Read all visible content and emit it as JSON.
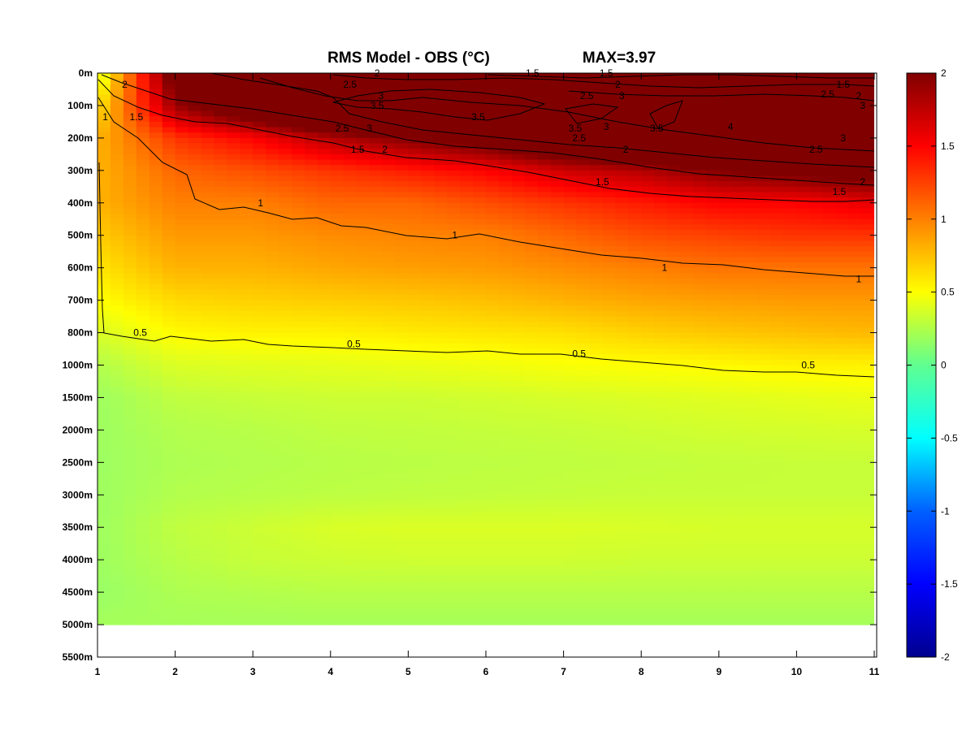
{
  "chart_data": {
    "type": "heatmap",
    "title": "RMS Model - OBS (°C)",
    "max_annotation": "MAX=3.97",
    "x": {
      "ticks": [
        1,
        2,
        3,
        4,
        5,
        6,
        7,
        8,
        9,
        10,
        11
      ],
      "tick_labels": [
        "1",
        "2",
        "3",
        "4",
        "5",
        "6",
        "7",
        "8",
        "9",
        "10",
        "11"
      ],
      "range": [
        1,
        11
      ]
    },
    "y": {
      "tick_labels": [
        "0m",
        "100m",
        "200m",
        "300m",
        "400m",
        "500m",
        "600m",
        "700m",
        "800m",
        "1000m",
        "1500m",
        "2000m",
        "2500m",
        "3000m",
        "3500m",
        "4000m",
        "4500m",
        "5000m",
        "5500m"
      ],
      "data_extent_label": "5000m"
    },
    "colorbar": {
      "range": [
        -2,
        2
      ],
      "tick_labels": [
        "2",
        "1.5",
        "1",
        "0.5",
        "0",
        "-0.5",
        "-1",
        "-1.5",
        "-2"
      ],
      "colormap": "jet",
      "colors": [
        "#00008f",
        "#0000ff",
        "#0080ff",
        "#00ffff",
        "#80ff80",
        "#ffff00",
        "#ff8000",
        "#ff0000",
        "#800000"
      ]
    },
    "depth_profiles": [
      {
        "depth": "0m",
        "values": [
          0.3,
          2.2,
          3.2,
          3.6,
          3.8,
          3.9,
          3.9,
          3.7,
          3.5,
          3.3,
          3.0
        ]
      },
      {
        "depth": "100m",
        "values": [
          0.6,
          1.9,
          2.4,
          3.0,
          3.5,
          3.6,
          3.8,
          3.6,
          3.4,
          3.3,
          3.2
        ]
      },
      {
        "depth": "200m",
        "values": [
          0.8,
          1.3,
          1.5,
          1.8,
          2.0,
          2.2,
          2.5,
          2.8,
          3.1,
          3.2,
          3.2
        ]
      },
      {
        "depth": "300m",
        "values": [
          0.8,
          1.1,
          1.2,
          1.3,
          1.4,
          1.5,
          1.7,
          1.8,
          2.0,
          2.1,
          2.2
        ]
      },
      {
        "depth": "400m",
        "values": [
          0.8,
          1.0,
          1.0,
          1.1,
          1.1,
          1.2,
          1.3,
          1.4,
          1.5,
          1.5,
          1.6
        ]
      },
      {
        "depth": "500m",
        "values": [
          0.7,
          0.9,
          0.9,
          0.95,
          0.98,
          1.0,
          1.1,
          1.2,
          1.25,
          1.3,
          1.3
        ]
      },
      {
        "depth": "600m",
        "values": [
          0.6,
          0.8,
          0.8,
          0.85,
          0.88,
          0.9,
          0.95,
          1.0,
          1.05,
          1.05,
          1.05
        ]
      },
      {
        "depth": "700m",
        "values": [
          0.5,
          0.65,
          0.68,
          0.7,
          0.72,
          0.75,
          0.8,
          0.85,
          0.88,
          0.9,
          0.9
        ]
      },
      {
        "depth": "800m",
        "values": [
          0.35,
          0.52,
          0.55,
          0.55,
          0.58,
          0.6,
          0.62,
          0.68,
          0.72,
          0.75,
          0.78
        ]
      },
      {
        "depth": "1000m",
        "values": [
          0.2,
          0.36,
          0.38,
          0.4,
          0.42,
          0.44,
          0.48,
          0.5,
          0.52,
          0.55,
          0.55
        ]
      },
      {
        "depth": "1500m",
        "values": [
          0.12,
          0.25,
          0.28,
          0.3,
          0.3,
          0.32,
          0.34,
          0.36,
          0.38,
          0.4,
          0.42
        ]
      },
      {
        "depth": "2000m",
        "values": [
          0.12,
          0.2,
          0.22,
          0.25,
          0.26,
          0.27,
          0.28,
          0.3,
          0.32,
          0.33,
          0.34
        ]
      },
      {
        "depth": "2500m",
        "values": [
          0.12,
          0.18,
          0.2,
          0.22,
          0.23,
          0.24,
          0.25,
          0.26,
          0.27,
          0.28,
          0.28
        ]
      },
      {
        "depth": "3000m",
        "values": [
          0.12,
          0.2,
          0.22,
          0.24,
          0.25,
          0.26,
          0.27,
          0.28,
          0.28,
          0.28,
          0.28
        ]
      },
      {
        "depth": "3500m",
        "values": [
          0.12,
          0.25,
          0.3,
          0.35,
          0.36,
          0.36,
          0.36,
          0.35,
          0.34,
          0.34,
          0.34
        ]
      },
      {
        "depth": "4000m",
        "values": [
          0.12,
          0.22,
          0.28,
          0.3,
          0.31,
          0.31,
          0.31,
          0.3,
          0.3,
          0.3,
          0.3
        ]
      },
      {
        "depth": "4500m",
        "values": [
          0.1,
          0.18,
          0.2,
          0.22,
          0.22,
          0.22,
          0.22,
          0.22,
          0.22,
          0.22,
          0.22
        ]
      },
      {
        "depth": "5000m",
        "values": [
          0.15,
          0.15,
          0.15,
          0.15,
          0.15,
          0.15,
          0.15,
          0.15,
          0.15,
          0.15,
          0.15
        ]
      }
    ],
    "contour_labels": [
      {
        "text": "2",
        "x": 1.35,
        "depth": "0m+"
      },
      {
        "text": "1",
        "x": 1.1,
        "depth": "100m+"
      },
      {
        "text": "1.5",
        "x": 1.5,
        "depth": "100m+"
      },
      {
        "text": "1",
        "x": 3.1,
        "depth": "400m"
      },
      {
        "text": "1",
        "x": 5.6,
        "depth": "500m"
      },
      {
        "text": "1",
        "x": 8.3,
        "depth": "600m"
      },
      {
        "text": "1",
        "x": 10.8,
        "depth": "600m+"
      },
      {
        "text": "0.5",
        "x": 1.55,
        "depth": "800m"
      },
      {
        "text": "0.5",
        "x": 4.3,
        "depth": "800m+"
      },
      {
        "text": "0.5",
        "x": 7.2,
        "depth": "1000m-"
      },
      {
        "text": "0.5",
        "x": 10.15,
        "depth": "1000m"
      },
      {
        "text": "1.5",
        "x": 4.35,
        "depth": "200m+"
      },
      {
        "text": "2",
        "x": 4.7,
        "depth": "200m+"
      },
      {
        "text": "2.5",
        "x": 4.15,
        "depth": "100m++"
      },
      {
        "text": "3",
        "x": 4.5,
        "depth": "100m++"
      },
      {
        "text": "3.5",
        "x": 4.6,
        "depth": "100m"
      },
      {
        "text": "2.5",
        "x": 4.25,
        "depth": "0m+"
      },
      {
        "text": "3",
        "x": 4.65,
        "depth": "0m++"
      },
      {
        "text": "2",
        "x": 4.6,
        "depth": "0m"
      },
      {
        "text": "3.5",
        "x": 5.9,
        "depth": "100m+"
      },
      {
        "text": "1.5",
        "x": 6.6,
        "depth": "0m"
      },
      {
        "text": "2.5",
        "x": 7.3,
        "depth": "0m++"
      },
      {
        "text": "3.5",
        "x": 7.15,
        "depth": "100m++"
      },
      {
        "text": "2.5",
        "x": 7.2,
        "depth": "200m"
      },
      {
        "text": "1.5",
        "x": 7.5,
        "depth": "300m+"
      },
      {
        "text": "1.5",
        "x": 7.55,
        "depth": "0m"
      },
      {
        "text": "2",
        "x": 7.7,
        "depth": "0m+"
      },
      {
        "text": "3",
        "x": 7.75,
        "depth": "0m++"
      },
      {
        "text": "3",
        "x": 7.55,
        "depth": "200m-"
      },
      {
        "text": "2",
        "x": 7.8,
        "depth": "200m+"
      },
      {
        "text": "3.5",
        "x": 8.2,
        "depth": "100m++"
      },
      {
        "text": "4",
        "x": 9.15,
        "depth": "200m-"
      },
      {
        "text": "3",
        "x": 10.6,
        "depth": "200m"
      },
      {
        "text": "2.5",
        "x": 10.25,
        "depth": "200m+"
      },
      {
        "text": "2",
        "x": 10.85,
        "depth": "300m+"
      },
      {
        "text": "1.5",
        "x": 10.55,
        "depth": "400m-"
      },
      {
        "text": "1.5",
        "x": 10.6,
        "depth": "0m+"
      },
      {
        "text": "2",
        "x": 10.8,
        "depth": "0m++"
      },
      {
        "text": "2.5",
        "x": 10.4,
        "depth": "100m-"
      },
      {
        "text": "3",
        "x": 10.85,
        "depth": "100m"
      }
    ]
  }
}
